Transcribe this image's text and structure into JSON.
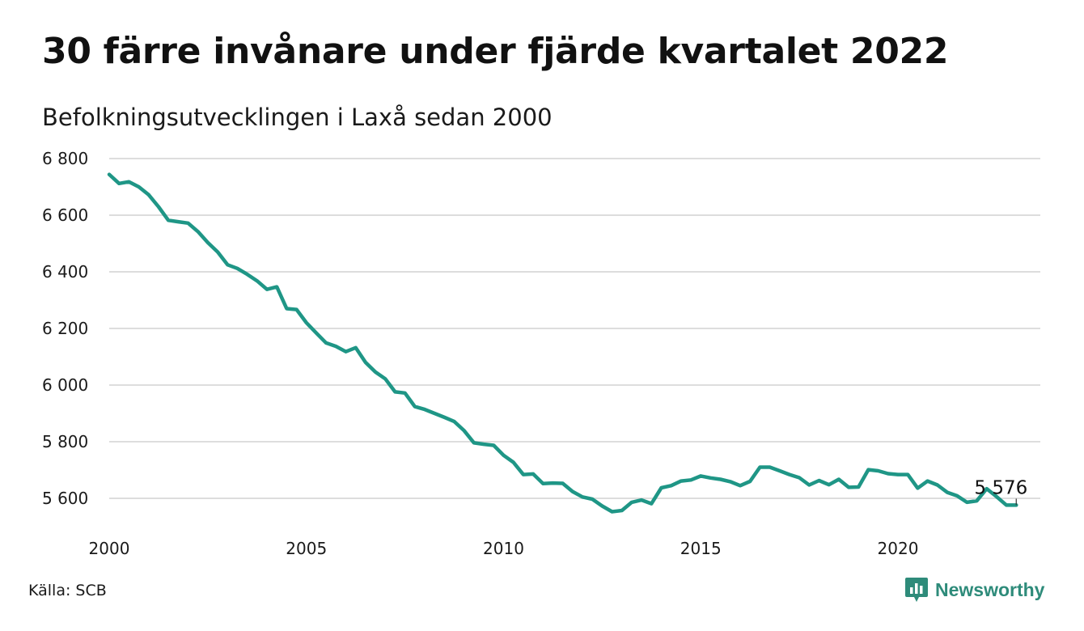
{
  "header": {
    "title": "30 färre invånare under fjärde kvartalet 2022",
    "subtitle": "Befolkningsutvecklingen i Laxå sedan 2000"
  },
  "footer": {
    "source": "Källa: SCB",
    "brand": "Newsworthy",
    "brand_icon": "newsworthy-logo-icon"
  },
  "colors": {
    "line": "#1f9686",
    "grid": "#dddddd",
    "brand": "#2e8b7a"
  },
  "chart_data": {
    "type": "line",
    "title": "30 färre invånare under fjärde kvartalet 2022",
    "subtitle": "Befolkningsutvecklingen i Laxå sedan 2000",
    "xlabel": "",
    "ylabel": "",
    "xlim": [
      2000,
      2023
    ],
    "ylim": [
      5550,
      6800
    ],
    "x_ticks": [
      2000,
      2005,
      2010,
      2015,
      2020
    ],
    "x_tick_labels": [
      "2000",
      "2005",
      "2010",
      "2015",
      "2020"
    ],
    "y_ticks": [
      5600,
      5800,
      6000,
      6200,
      6400,
      6600,
      6800
    ],
    "y_tick_labels": [
      "5 600",
      "5 800",
      "6 000",
      "6 200",
      "6 400",
      "6 600",
      "6 800"
    ],
    "grid": "horizontal",
    "end_label": "5 576",
    "series": [
      {
        "name": "",
        "x": [
          2000.0,
          2000.25,
          2000.5,
          2000.75,
          2001.0,
          2001.25,
          2001.5,
          2001.75,
          2002.0,
          2002.25,
          2002.5,
          2002.75,
          2003.0,
          2003.25,
          2003.5,
          2003.75,
          2004.0,
          2004.25,
          2004.5,
          2004.75,
          2005.0,
          2005.25,
          2005.5,
          2005.75,
          2006.0,
          2006.25,
          2006.5,
          2006.75,
          2007.0,
          2007.25,
          2007.5,
          2007.75,
          2008.0,
          2008.25,
          2008.5,
          2008.75,
          2009.0,
          2009.25,
          2009.5,
          2009.75,
          2010.0,
          2010.25,
          2010.5,
          2010.75,
          2011.0,
          2011.25,
          2011.5,
          2011.75,
          2012.0,
          2012.25,
          2012.5,
          2012.75,
          2013.0,
          2013.25,
          2013.5,
          2013.75,
          2014.0,
          2014.25,
          2014.5,
          2014.75,
          2015.0,
          2015.25,
          2015.5,
          2015.75,
          2016.0,
          2016.25,
          2016.5,
          2016.75,
          2017.0,
          2017.25,
          2017.5,
          2017.75,
          2018.0,
          2018.25,
          2018.5,
          2018.75,
          2019.0,
          2019.25,
          2019.5,
          2019.75,
          2020.0,
          2020.25,
          2020.5,
          2020.75,
          2021.0,
          2021.25,
          2021.5,
          2021.75,
          2022.0,
          2022.25,
          2022.5,
          2022.75,
          2023.0
        ],
        "values": [
          6744,
          6712,
          6718,
          6700,
          6672,
          6630,
          6582,
          6577,
          6572,
          6542,
          6503,
          6470,
          6425,
          6412,
          6391,
          6368,
          6338,
          6347,
          6270,
          6267,
          6220,
          6184,
          6149,
          6137,
          6118,
          6132,
          6080,
          6046,
          6022,
          5976,
          5972,
          5924,
          5914,
          5900,
          5886,
          5871,
          5839,
          5796,
          5791,
          5787,
          5752,
          5727,
          5684,
          5686,
          5652,
          5654,
          5653,
          5624,
          5605,
          5597,
          5573,
          5553,
          5557,
          5586,
          5594,
          5581,
          5637,
          5645,
          5661,
          5665,
          5679,
          5672,
          5667,
          5659,
          5645,
          5660,
          5710,
          5710,
          5697,
          5684,
          5673,
          5647,
          5663,
          5648,
          5667,
          5639,
          5640,
          5701,
          5697,
          5687,
          5684,
          5684,
          5636,
          5661,
          5647,
          5621,
          5609,
          5586,
          5591,
          5634,
          5606,
          5576,
          5576
        ]
      }
    ]
  }
}
